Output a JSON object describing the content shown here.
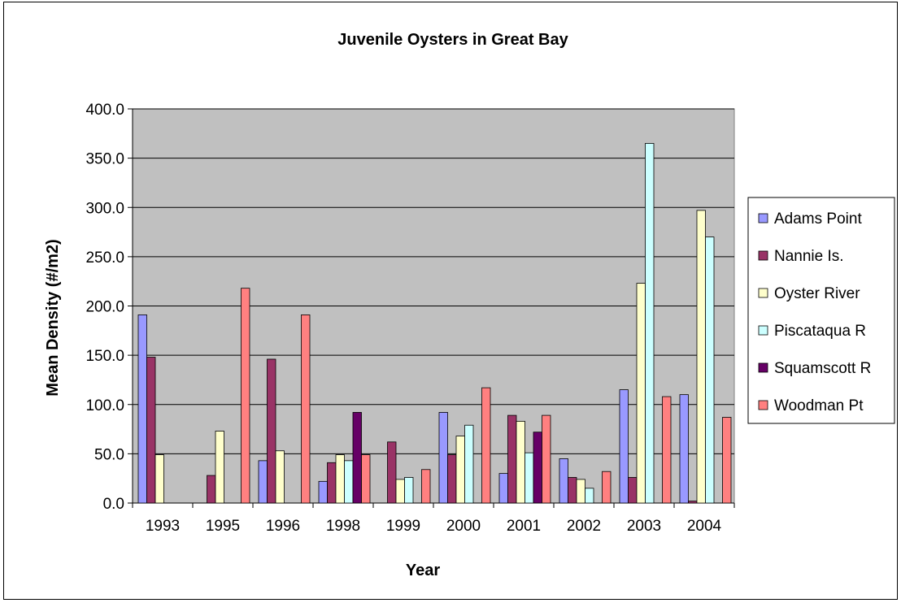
{
  "chart_data": {
    "type": "bar",
    "title": "Juvenile Oysters in Great Bay",
    "xlabel": "Year",
    "ylabel": "Mean Density (#/m2)",
    "ylim": [
      0,
      400
    ],
    "yticks": [
      "0.0",
      "50.0",
      "100.0",
      "150.0",
      "200.0",
      "250.0",
      "300.0",
      "350.0",
      "400.0"
    ],
    "grid": true,
    "legend_position": "right",
    "categories": [
      "1993",
      "1995",
      "1996",
      "1998",
      "1999",
      "2000",
      "2001",
      "2002",
      "2003",
      "2004"
    ],
    "series": [
      {
        "name": "Adams Point",
        "color": "#9999FF",
        "values": [
          191,
          0,
          43,
          22,
          0,
          92,
          30,
          45,
          115,
          110
        ]
      },
      {
        "name": "Nannie Is.",
        "color": "#993366",
        "values": [
          148,
          28,
          146,
          41,
          62,
          49,
          89,
          26,
          26,
          2
        ]
      },
      {
        "name": "Oyster River",
        "color": "#FFFFCC",
        "values": [
          49,
          73,
          53,
          49,
          24,
          68,
          83,
          24,
          223,
          297
        ]
      },
      {
        "name": "Piscataqua R",
        "color": "#CCFFFF",
        "values": [
          0,
          0,
          0,
          43,
          26,
          79,
          51,
          15,
          365,
          270
        ]
      },
      {
        "name": "Squamscott R",
        "color": "#660066",
        "values": [
          0,
          0,
          0,
          92,
          0,
          0,
          72,
          0,
          0,
          0
        ]
      },
      {
        "name": "Woodman Pt",
        "color": "#FF8080",
        "values": [
          0,
          218,
          191,
          49,
          34,
          117,
          89,
          32,
          108,
          87
        ]
      }
    ],
    "plot_background": "#C0C0C0"
  }
}
